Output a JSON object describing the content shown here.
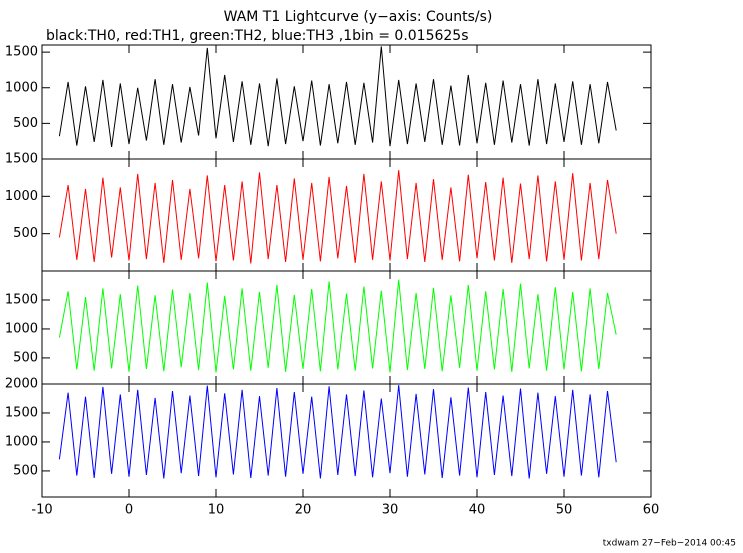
{
  "title": "WAM T1 Lightcurve (y−axis: Counts/s)",
  "subtitle": "black:TH0, red:TH1, green:TH2, blue:TH3 ,1bin = 0.015625s",
  "footer": "txdwam 27−Feb−2014 00:45",
  "chart_data": [
    {
      "type": "line",
      "color": "#000000",
      "xlim": [
        -10,
        60
      ],
      "xticks": [
        -10,
        0,
        10,
        20,
        30,
        40,
        50,
        60
      ],
      "ylim": [
        0,
        1600
      ],
      "yticks": [
        500,
        1000,
        1500
      ],
      "x": [
        -8,
        -7,
        -6,
        -5,
        -4,
        -3,
        -2,
        -1,
        0,
        1,
        2,
        3,
        4,
        5,
        6,
        7,
        8,
        9,
        10,
        11,
        12,
        13,
        14,
        15,
        16,
        17,
        18,
        19,
        20,
        21,
        22,
        23,
        24,
        25,
        26,
        27,
        28,
        29,
        30,
        31,
        32,
        33,
        34,
        35,
        36,
        37,
        38,
        39,
        40,
        41,
        42,
        43,
        44,
        45,
        46,
        47,
        48,
        49,
        50,
        51,
        52,
        53,
        54,
        55,
        56
      ],
      "values": [
        320,
        1080,
        190,
        1020,
        240,
        1110,
        170,
        1060,
        210,
        1000,
        260,
        1120,
        200,
        1050,
        230,
        1010,
        330,
        1560,
        290,
        1180,
        240,
        1090,
        200,
        1060,
        180,
        1130,
        210,
        1020,
        250,
        1100,
        190,
        1050,
        220,
        1080,
        200,
        1070,
        230,
        1580,
        180,
        1110,
        210,
        1060,
        240,
        1120,
        200,
        1030,
        190,
        1180,
        220,
        1070,
        200,
        1100,
        230,
        1050,
        190,
        1120,
        210,
        1060,
        240,
        1090,
        200,
        1050,
        220,
        1080,
        400
      ]
    },
    {
      "type": "line",
      "color": "#ff0000",
      "xlim": [
        -10,
        60
      ],
      "xticks": [
        -10,
        0,
        10,
        20,
        30,
        40,
        50,
        60
      ],
      "ylim": [
        0,
        1500
      ],
      "yticks": [
        500,
        1000,
        1500
      ],
      "x": [
        -8,
        -7,
        -6,
        -5,
        -4,
        -3,
        -2,
        -1,
        0,
        1,
        2,
        3,
        4,
        5,
        6,
        7,
        8,
        9,
        10,
        11,
        12,
        13,
        14,
        15,
        16,
        17,
        18,
        19,
        20,
        21,
        22,
        23,
        24,
        25,
        26,
        27,
        28,
        29,
        30,
        31,
        32,
        33,
        34,
        35,
        36,
        37,
        38,
        39,
        40,
        41,
        42,
        43,
        44,
        45,
        46,
        47,
        48,
        49,
        50,
        51,
        52,
        53,
        54,
        55,
        56
      ],
      "values": [
        450,
        1150,
        150,
        1100,
        120,
        1250,
        180,
        1120,
        140,
        1300,
        160,
        1180,
        110,
        1220,
        150,
        1100,
        170,
        1280,
        130,
        1150,
        140,
        1200,
        100,
        1320,
        160,
        1150,
        120,
        1240,
        150,
        1180,
        130,
        1260,
        170,
        1140,
        110,
        1300,
        150,
        1200,
        140,
        1350,
        160,
        1180,
        120,
        1230,
        150,
        1120,
        130,
        1290,
        170,
        1190,
        140,
        1250,
        110,
        1170,
        160,
        1280,
        130,
        1200,
        150,
        1310,
        140,
        1180,
        160,
        1220,
        500
      ]
    },
    {
      "type": "line",
      "color": "#00ff00",
      "xlim": [
        -10,
        60
      ],
      "xticks": [
        -10,
        0,
        10,
        20,
        30,
        40,
        50,
        60
      ],
      "ylim": [
        50,
        2000
      ],
      "yticks": [
        500,
        1000,
        1500
      ],
      "x": [
        -8,
        -7,
        -6,
        -5,
        -4,
        -3,
        -2,
        -1,
        0,
        1,
        2,
        3,
        4,
        5,
        6,
        7,
        8,
        9,
        10,
        11,
        12,
        13,
        14,
        15,
        16,
        17,
        18,
        19,
        20,
        21,
        22,
        23,
        24,
        25,
        26,
        27,
        28,
        29,
        30,
        31,
        32,
        33,
        34,
        35,
        36,
        37,
        38,
        39,
        40,
        41,
        42,
        43,
        44,
        45,
        46,
        47,
        48,
        49,
        50,
        51,
        52,
        53,
        54,
        55,
        56
      ],
      "values": [
        850,
        1650,
        300,
        1550,
        280,
        1700,
        320,
        1600,
        260,
        1750,
        310,
        1580,
        270,
        1680,
        340,
        1620,
        290,
        1800,
        250,
        1570,
        300,
        1700,
        280,
        1640,
        330,
        1760,
        260,
        1590,
        310,
        1690,
        270,
        1820,
        300,
        1610,
        280,
        1730,
        320,
        1660,
        250,
        1850,
        290,
        1620,
        310,
        1710,
        270,
        1580,
        330,
        1760,
        280,
        1650,
        300,
        1690,
        260,
        1780,
        320,
        1600,
        280,
        1720,
        300,
        1640,
        270,
        1700,
        310,
        1620,
        900
      ]
    },
    {
      "type": "line",
      "color": "#0000ff",
      "xlim": [
        -10,
        60
      ],
      "xticks": [
        -10,
        0,
        10,
        20,
        30,
        40,
        50,
        60
      ],
      "ylim": [
        50,
        2000
      ],
      "yticks": [
        500,
        1000,
        1500,
        2000
      ],
      "x": [
        -8,
        -7,
        -6,
        -5,
        -4,
        -3,
        -2,
        -1,
        0,
        1,
        2,
        3,
        4,
        5,
        6,
        7,
        8,
        9,
        10,
        11,
        12,
        13,
        14,
        15,
        16,
        17,
        18,
        19,
        20,
        21,
        22,
        23,
        24,
        25,
        26,
        27,
        28,
        29,
        30,
        31,
        32,
        33,
        34,
        35,
        36,
        37,
        38,
        39,
        40,
        41,
        42,
        43,
        44,
        45,
        46,
        47,
        48,
        49,
        50,
        51,
        52,
        53,
        54,
        55,
        56
      ],
      "values": [
        700,
        1850,
        420,
        1780,
        380,
        1950,
        450,
        1820,
        400,
        1900,
        430,
        1760,
        370,
        1880,
        460,
        1800,
        410,
        1970,
        390,
        1840,
        440,
        1900,
        380,
        1790,
        420,
        1930,
        400,
        1860,
        450,
        1780,
        370,
        1960,
        430,
        1820,
        410,
        1890,
        390,
        1750,
        460,
        1980,
        400,
        1830,
        440,
        1910,
        380,
        1770,
        420,
        1940,
        390,
        1860,
        430,
        1800,
        410,
        1920,
        370,
        1850,
        450,
        1790,
        400,
        1900,
        420,
        1820,
        390,
        1880,
        650
      ]
    }
  ]
}
